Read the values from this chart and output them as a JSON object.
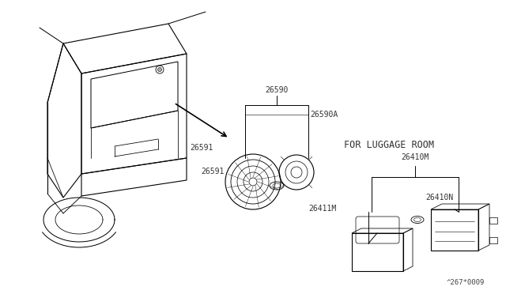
{
  "bg_color": "#ffffff",
  "line_color": "#000000",
  "text_color": "#333333",
  "fig_width": 6.4,
  "fig_height": 3.72,
  "watermark": "^267*0009",
  "for_luggage_room_label": "FOR LUGGAGE ROOM",
  "label_26590": "26590",
  "label_26590A": "26590A",
  "label_26591": "26591",
  "label_26410M": "26410M",
  "label_26410N": "26410N",
  "label_26411M": "26411M"
}
